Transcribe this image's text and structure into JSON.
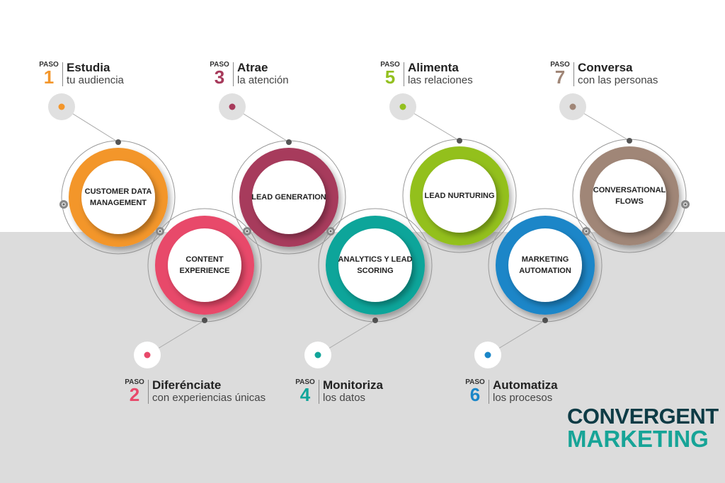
{
  "steps": [
    {
      "paso": "PASO",
      "num": "1",
      "title": "Estudia",
      "subtitle": "tu audiencia",
      "circle": "CUSTOMER DATA MANAGEMENT",
      "color": "#f3962b"
    },
    {
      "paso": "PASO",
      "num": "2",
      "title": "Diferénciate",
      "subtitle": "con experiencias únicas",
      "circle": "CONTENT EXPERIENCE",
      "color": "#e8496a"
    },
    {
      "paso": "PASO",
      "num": "3",
      "title": "Atrae",
      "subtitle": "la atención",
      "circle": "LEAD GENERATION",
      "color": "#a73a5b"
    },
    {
      "paso": "PASO",
      "num": "4",
      "title": "Monitoriza",
      "subtitle": "los datos",
      "circle": "ANALYTICS Y LEAD SCORING",
      "color": "#11a59a"
    },
    {
      "paso": "PASO",
      "num": "5",
      "title": "Alimenta",
      "subtitle": "las relaciones",
      "circle": "LEAD NURTURING",
      "color": "#93c01f"
    },
    {
      "paso": "PASO",
      "num": "6",
      "title": "Automatiza",
      "subtitle": "los procesos",
      "circle": "MARKETING AUTOMATION",
      "color": "#1a86c8"
    },
    {
      "paso": "PASO",
      "num": "7",
      "title": "Conversa",
      "subtitle": "con las personas",
      "circle": "CONVERSATIONAL FLOWS",
      "color": "#a08677"
    }
  ],
  "logo": {
    "line1": "CONVERGENT",
    "line2": "MARKETING"
  }
}
